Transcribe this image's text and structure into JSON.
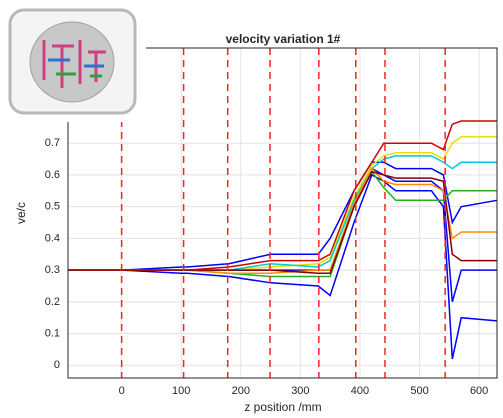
{
  "chart_data": {
    "type": "line",
    "title": "velocity variation 1#",
    "x_label": "z position /mm",
    "y_label": "ve/c",
    "xlim": [
      -90,
      630
    ],
    "ylim": [
      -0.04,
      1.0
    ],
    "xticks": [
      0,
      100,
      200,
      300,
      400,
      500,
      600
    ],
    "yticks": [
      0,
      0.1,
      0.2,
      0.3,
      0.4,
      0.5,
      0.6,
      0.7
    ],
    "grid": true,
    "markers": [
      0,
      104,
      178,
      249,
      331,
      393,
      442,
      543
    ],
    "marker_color": "#ff2020",
    "x": [
      -90,
      0,
      100,
      110,
      180,
      250,
      330,
      350,
      390,
      420,
      440,
      460,
      520,
      540,
      555,
      570,
      630
    ],
    "series": [
      {
        "color": "#0000ff",
        "values": [
          0.3,
          0.3,
          0.31,
          0.31,
          0.32,
          0.35,
          0.35,
          0.4,
          0.55,
          0.64,
          0.64,
          0.62,
          0.62,
          0.6,
          0.45,
          0.5,
          0.52
        ]
      },
      {
        "color": "#0000ff",
        "values": [
          0.3,
          0.3,
          0.29,
          0.29,
          0.28,
          0.26,
          0.25,
          0.22,
          0.45,
          0.6,
          0.58,
          0.55,
          0.55,
          0.5,
          0.02,
          0.15,
          0.14
        ]
      },
      {
        "color": "#0000ff",
        "values": [
          0.3,
          0.3,
          0.3,
          0.3,
          0.3,
          0.3,
          0.3,
          0.3,
          0.5,
          0.62,
          0.6,
          0.58,
          0.58,
          0.55,
          0.2,
          0.3,
          0.3
        ]
      },
      {
        "color": "#d00000",
        "values": [
          0.3,
          0.3,
          0.3,
          0.3,
          0.31,
          0.33,
          0.33,
          0.35,
          0.55,
          0.64,
          0.7,
          0.7,
          0.7,
          0.68,
          0.76,
          0.77,
          0.77
        ]
      },
      {
        "color": "#e8e000",
        "values": [
          0.3,
          0.3,
          0.3,
          0.3,
          0.3,
          0.31,
          0.32,
          0.34,
          0.53,
          0.63,
          0.66,
          0.67,
          0.67,
          0.65,
          0.7,
          0.72,
          0.72
        ]
      },
      {
        "color": "#00c8d8",
        "values": [
          0.3,
          0.3,
          0.3,
          0.3,
          0.3,
          0.32,
          0.31,
          0.33,
          0.52,
          0.62,
          0.65,
          0.66,
          0.66,
          0.64,
          0.62,
          0.64,
          0.64
        ]
      },
      {
        "color": "#20b020",
        "values": [
          0.3,
          0.3,
          0.3,
          0.3,
          0.29,
          0.28,
          0.28,
          0.28,
          0.5,
          0.61,
          0.56,
          0.52,
          0.52,
          0.52,
          0.55,
          0.55,
          0.55
        ]
      },
      {
        "color": "#ff8c00",
        "values": [
          0.3,
          0.3,
          0.3,
          0.3,
          0.29,
          0.29,
          0.3,
          0.3,
          0.51,
          0.62,
          0.58,
          0.57,
          0.57,
          0.55,
          0.4,
          0.42,
          0.42
        ]
      },
      {
        "color": "#800000",
        "values": [
          0.3,
          0.3,
          0.3,
          0.3,
          0.3,
          0.3,
          0.29,
          0.29,
          0.5,
          0.61,
          0.6,
          0.59,
          0.59,
          0.58,
          0.35,
          0.33,
          0.33
        ]
      }
    ]
  }
}
